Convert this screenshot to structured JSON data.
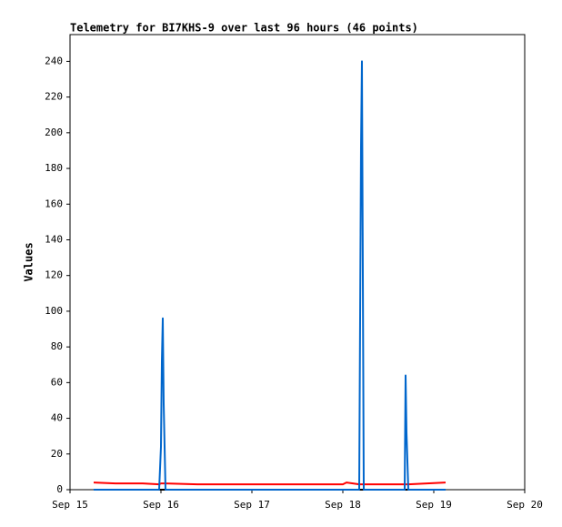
{
  "chart_data": {
    "type": "line",
    "title": "Telemetry for BI7KHS-9 over last 96 hours (46 points)",
    "y_label": "Values",
    "x": [
      15.26,
      15.5,
      15.8,
      15.98,
      16.0,
      16.01,
      16.02,
      16.03,
      16.05,
      16.4,
      16.8,
      17.5,
      18.0,
      18.04,
      18.18,
      18.19,
      18.2,
      18.21,
      18.23,
      18.68,
      18.69,
      18.7,
      18.72,
      19.13
    ],
    "series": [
      {
        "color": "#000000",
        "values": [
          0,
          0,
          0,
          0,
          0,
          0,
          0,
          0,
          0,
          0,
          0,
          0,
          0,
          0,
          0,
          0,
          0,
          0,
          0,
          0,
          0,
          0,
          0,
          0
        ]
      },
      {
        "color": "#ff0000",
        "values": [
          4,
          3.5,
          3.5,
          3,
          3.5,
          3.5,
          3.5,
          3.5,
          3.5,
          3,
          3,
          3,
          3,
          4,
          3,
          3,
          3,
          3,
          3,
          3,
          3,
          3,
          3,
          4
        ]
      },
      {
        "color": "#0066cc",
        "values": [
          0,
          0,
          0,
          0,
          24,
          72,
          96,
          48,
          0,
          0,
          0,
          0,
          0,
          0,
          0,
          96,
          192,
          240,
          0,
          0,
          64,
          32,
          0,
          0
        ]
      }
    ],
    "xlim": [
      15,
      20
    ],
    "xticks": [
      {
        "value": 15,
        "label": "Sep 15"
      },
      {
        "value": 16,
        "label": "Sep 16"
      },
      {
        "value": 17,
        "label": "Sep 17"
      },
      {
        "value": 18,
        "label": "Sep 18"
      },
      {
        "value": 19,
        "label": "Sep 19"
      },
      {
        "value": 20,
        "label": "Sep 20"
      }
    ],
    "ylim": [
      0,
      255
    ],
    "yticks": [
      0,
      20,
      40,
      60,
      80,
      100,
      120,
      140,
      160,
      180,
      200,
      220,
      240
    ],
    "grid": false
  }
}
